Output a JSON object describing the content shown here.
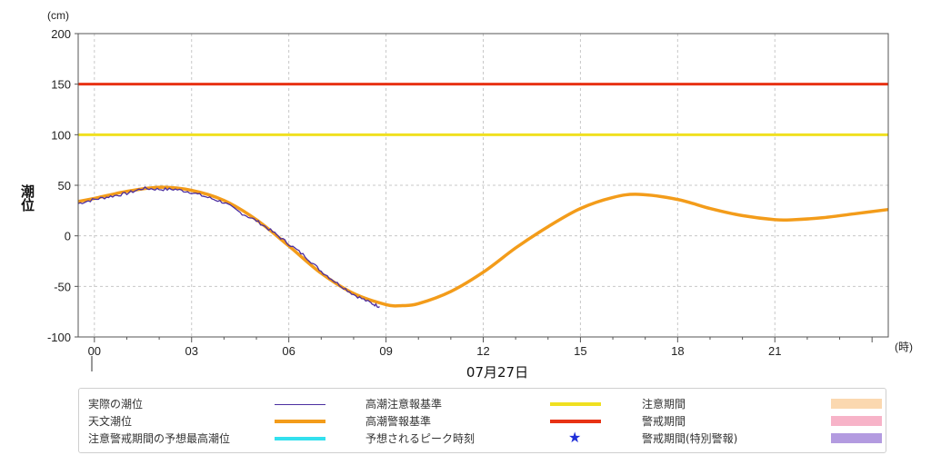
{
  "chart_data": {
    "type": "line",
    "unit": "(cm)",
    "ylabel": "潮位",
    "xunit": "(時)",
    "date": "07月27日",
    "xlim": [
      -0.5,
      24.5
    ],
    "ylim": [
      -100,
      200
    ],
    "yticks": [
      -100,
      -50,
      0,
      50,
      100,
      150,
      200
    ],
    "xticks": [
      {
        "h": 0,
        "label": "00"
      },
      {
        "h": 3,
        "label": "03"
      },
      {
        "h": 6,
        "label": "06"
      },
      {
        "h": 9,
        "label": "09"
      },
      {
        "h": 12,
        "label": "12"
      },
      {
        "h": 15,
        "label": "15"
      },
      {
        "h": 18,
        "label": "18"
      },
      {
        "h": 21,
        "label": "21"
      }
    ],
    "grid": true,
    "thresholds": [
      {
        "name": "高潮注意報基準",
        "value": 100,
        "color": "#f0e020"
      },
      {
        "name": "高潮警報基準",
        "value": 150,
        "color": "#e83214"
      }
    ],
    "series": [
      {
        "name": "天文潮位",
        "color": "#f39c1a",
        "x": [
          -0.5,
          0,
          1,
          2,
          3,
          4,
          5,
          6,
          7,
          8,
          9,
          9.5,
          10,
          11,
          12,
          13,
          14,
          15,
          16,
          16.8,
          18,
          19,
          20,
          21,
          21.6,
          22.5,
          23.5,
          24.5
        ],
        "y": [
          34,
          37,
          44,
          48,
          45,
          35,
          16,
          -10,
          -37,
          -57,
          -68,
          -69,
          -67,
          -55,
          -36,
          -12,
          9,
          27,
          38,
          41,
          36,
          27,
          20,
          16,
          16,
          18,
          22,
          26
        ]
      },
      {
        "name": "実際の潮位",
        "color": "#4b2ea0",
        "x": [
          -0.5,
          0,
          0.5,
          1,
          1.5,
          2,
          2.5,
          3,
          3.5,
          4,
          4.5,
          5,
          5.5,
          6,
          6.5,
          7,
          7.5,
          8,
          8.5,
          8.8
        ],
        "y": [
          32,
          36,
          39,
          42,
          47,
          46,
          46,
          43,
          38,
          33,
          23,
          15,
          4,
          -8,
          -20,
          -35,
          -47,
          -58,
          -66,
          -70
        ]
      }
    ]
  },
  "legend": {
    "items": [
      {
        "label": "実際の潮位",
        "type": "thin-line",
        "color": "#4b2ea0"
      },
      {
        "label": "天文潮位",
        "type": "thick-line",
        "color": "#f39c1a"
      },
      {
        "label": "注意警戒期間の予想最高潮位",
        "type": "thick-line",
        "color": "#33e0ee"
      },
      {
        "label": "高潮注意報基準",
        "type": "thick-line",
        "color": "#f0e020"
      },
      {
        "label": "高潮警報基準",
        "type": "thick-line",
        "color": "#e83214"
      },
      {
        "label": "予想されるピーク時刻",
        "type": "star",
        "color": "#1f2fd8",
        "glyph": "★"
      },
      {
        "label": "注意期間",
        "type": "box",
        "color": "#fbd8b0"
      },
      {
        "label": "警戒期間",
        "type": "box",
        "color": "#f7b3c8"
      },
      {
        "label": "警戒期間(特別警報)",
        "type": "box",
        "color": "#b39be0"
      }
    ]
  }
}
